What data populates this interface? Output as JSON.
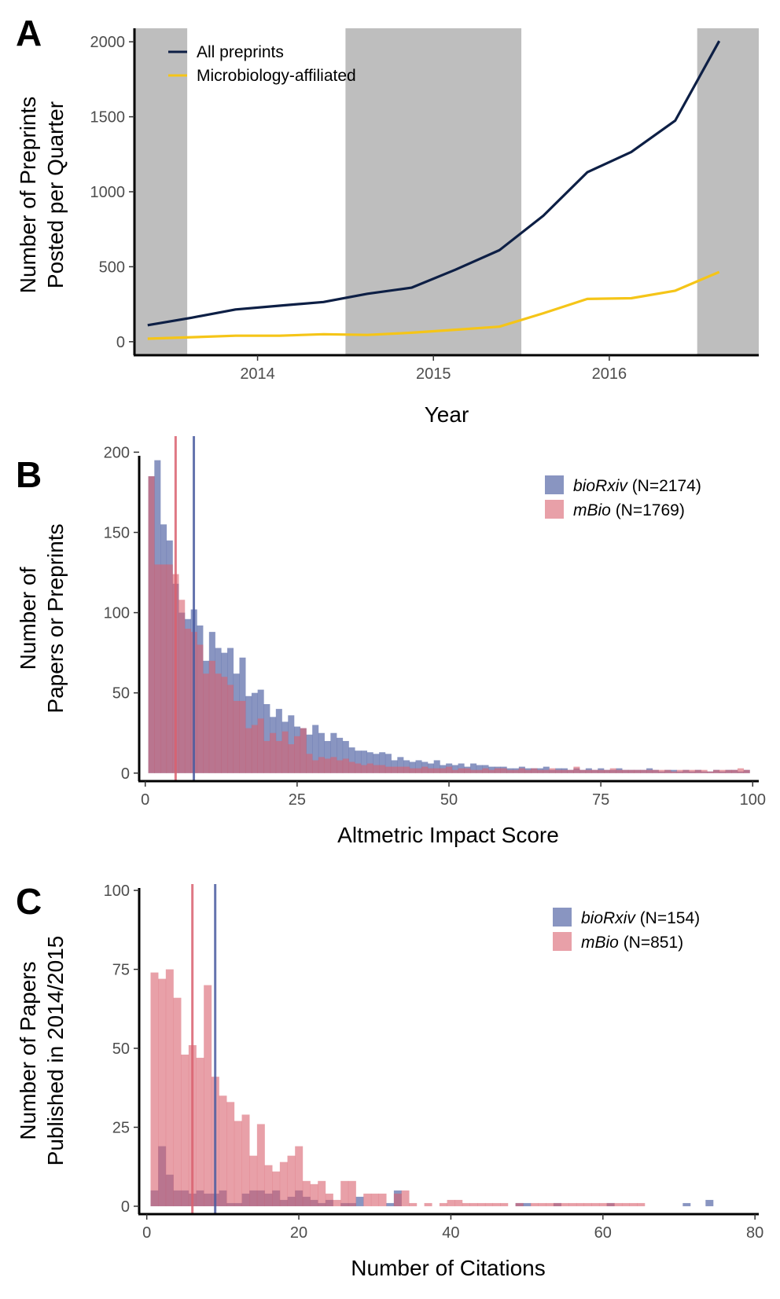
{
  "chart_data": [
    {
      "panel": "A",
      "type": "line",
      "xlabel": "Year",
      "ylabel_lines": [
        "Number of Preprints",
        "Posted per Quarter"
      ],
      "xlim": [
        2013.3,
        2016.85
      ],
      "ylim": [
        -90,
        2090
      ],
      "xticks": [
        2014,
        2015,
        2016
      ],
      "xtick_labels": [
        "2014",
        "2015",
        "2016"
      ],
      "yticks": [
        0,
        500,
        1000,
        1500,
        2000
      ],
      "ytick_labels": [
        "0",
        "500",
        "1000",
        "1500",
        "2000"
      ],
      "shaded_ranges": [
        [
          2013.3,
          2013.6
        ],
        [
          2014.5,
          2015.5
        ],
        [
          2016.5,
          2016.85
        ]
      ],
      "shade_color": "#bebebe",
      "legend_position": "top-left",
      "series": [
        {
          "name": "All preprints",
          "color": "#0d1f45",
          "x": [
            2013.375,
            2013.625,
            2013.875,
            2014.125,
            2014.375,
            2014.625,
            2014.875,
            2015.125,
            2015.375,
            2015.625,
            2015.875,
            2016.125,
            2016.375,
            2016.625
          ],
          "y": [
            110,
            160,
            215,
            240,
            265,
            320,
            360,
            480,
            610,
            840,
            1130,
            1265,
            1475,
            2005
          ]
        },
        {
          "name": "Microbiology-affiliated",
          "color": "#f5c518",
          "x": [
            2013.375,
            2013.625,
            2013.875,
            2014.125,
            2014.375,
            2014.625,
            2014.875,
            2015.125,
            2015.375,
            2015.625,
            2015.875,
            2016.125,
            2016.375,
            2016.625
          ],
          "y": [
            20,
            30,
            40,
            40,
            50,
            45,
            60,
            80,
            100,
            190,
            285,
            290,
            340,
            465
          ]
        }
      ]
    },
    {
      "panel": "B",
      "type": "bar",
      "xlabel": "Altmetric Impact Score",
      "ylabel_lines": [
        "Number of",
        "Papers or Preprints"
      ],
      "xlim": [
        -1,
        101
      ],
      "ylim": [
        -5,
        210
      ],
      "xticks": [
        0,
        25,
        50,
        75,
        100
      ],
      "xtick_labels": [
        "0",
        "25",
        "50",
        "75",
        "100"
      ],
      "yticks": [
        0,
        50,
        100,
        150,
        200
      ],
      "ytick_labels": [
        "0",
        "50",
        "100",
        "150",
        "200"
      ],
      "bin_start": 0.5,
      "bin_width": 1,
      "legend_position": "top-right",
      "series": [
        {
          "name_italic": "bioRxiv",
          "name_suffix": " (N=2174)",
          "color": "#4a5ca0",
          "opacity": 0.65,
          "median": 8,
          "values": [
            185,
            195,
            155,
            145,
            118,
            100,
            96,
            102,
            92,
            70,
            88,
            78,
            75,
            78,
            62,
            72,
            48,
            50,
            52,
            43,
            35,
            40,
            32,
            36,
            29,
            28,
            24,
            30,
            25,
            20,
            25,
            22,
            20,
            16,
            14,
            14,
            13,
            12,
            13,
            12,
            8,
            10,
            8,
            7,
            8,
            7,
            6,
            8,
            5,
            6,
            5,
            6,
            4,
            6,
            5,
            5,
            4,
            4,
            4,
            3,
            3,
            4,
            3,
            3,
            3,
            4,
            2,
            3,
            3,
            2,
            3,
            2,
            3,
            2,
            3,
            2,
            2,
            3,
            2,
            2,
            2,
            2,
            3,
            2,
            1,
            2,
            2,
            1,
            2,
            1,
            2,
            1,
            1,
            2,
            1,
            2,
            2,
            1,
            2
          ]
        },
        {
          "name_italic": "mBio",
          "name_suffix": " (N=1769)",
          "color": "#d9606e",
          "opacity": 0.6,
          "median": 5,
          "values": [
            185,
            130,
            130,
            130,
            124,
            108,
            90,
            88,
            80,
            62,
            70,
            62,
            60,
            55,
            45,
            45,
            28,
            30,
            34,
            20,
            25,
            20,
            26,
            18,
            23,
            28,
            12,
            8,
            10,
            9,
            10,
            8,
            9,
            7,
            6,
            5,
            6,
            5,
            5,
            4,
            4,
            4,
            4,
            3,
            3,
            4,
            3,
            3,
            3,
            4,
            2,
            3,
            3,
            2,
            2,
            3,
            2,
            3,
            3,
            2,
            2,
            3,
            2,
            3,
            2,
            2,
            3,
            2,
            2,
            2,
            4,
            2,
            2,
            2,
            2,
            2,
            3,
            2,
            2,
            2,
            2,
            2,
            2,
            2,
            2,
            2,
            1,
            2,
            2,
            2,
            2,
            2,
            1,
            2,
            2,
            2,
            2,
            3,
            2
          ]
        }
      ]
    },
    {
      "panel": "C",
      "type": "bar",
      "xlabel": "Number of Citations",
      "ylabel_lines": [
        "Number of Papers",
        "Published in 2014/2015"
      ],
      "xlim": [
        -1,
        80.5
      ],
      "ylim": [
        -2.5,
        102
      ],
      "xticks": [
        0,
        20,
        40,
        60,
        80
      ],
      "xtick_labels": [
        "0",
        "20",
        "40",
        "60",
        "80"
      ],
      "yticks": [
        0,
        25,
        50,
        75,
        100
      ],
      "ytick_labels": [
        "0",
        "25",
        "50",
        "75",
        "100"
      ],
      "bin_start": 0.5,
      "bin_width": 1,
      "legend_position": "top-right",
      "series": [
        {
          "name_italic": "bioRxiv",
          "name_suffix": " (N=154)",
          "color": "#4a5ca0",
          "opacity": 0.65,
          "median": 9,
          "values": [
            5,
            19,
            10,
            5,
            5,
            4,
            5,
            4,
            4,
            5,
            1,
            1,
            4,
            5,
            5,
            4,
            5,
            2,
            3,
            5,
            3,
            2,
            1,
            2,
            0,
            1,
            1,
            3,
            0,
            0,
            0,
            1,
            5,
            0,
            0,
            0,
            0,
            0,
            0,
            0,
            0,
            0,
            0,
            0,
            0,
            0,
            0,
            0,
            1,
            1,
            0,
            0,
            0,
            1,
            0,
            0,
            0,
            0,
            0,
            0,
            1,
            0,
            0,
            0,
            0,
            0,
            0,
            0,
            0,
            0,
            1,
            0,
            0,
            2
          ]
        },
        {
          "name_italic": "mBio",
          "name_suffix": " (N=851)",
          "color": "#d9606e",
          "opacity": 0.6,
          "median": 6,
          "values": [
            74,
            72,
            75,
            66,
            48,
            51,
            47,
            70,
            41,
            35,
            33,
            27,
            29,
            16,
            26,
            13,
            11,
            14,
            16,
            19,
            8,
            7,
            8,
            4,
            2,
            8,
            8,
            0,
            4,
            4,
            4,
            0,
            4,
            5,
            1,
            0,
            1,
            0,
            1,
            2,
            2,
            1,
            1,
            1,
            1,
            1,
            1,
            0,
            1,
            0,
            1,
            1,
            1,
            1,
            1,
            1,
            1,
            1,
            1,
            1,
            1,
            1,
            1,
            1,
            1,
            0,
            0,
            0,
            0,
            0,
            0,
            0,
            0,
            0
          ]
        }
      ]
    }
  ]
}
